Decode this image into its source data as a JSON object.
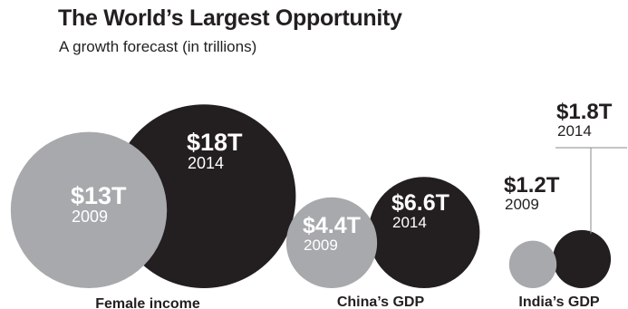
{
  "title": "The World’s Largest Opportunity",
  "subtitle": "A growth forecast (in trillions)",
  "chart_data": {
    "type": "bubble",
    "title": "The World’s Largest Opportunity",
    "subtitle": "A growth forecast (in trillions)",
    "unit": "trillions",
    "series": [
      {
        "name": "2009",
        "color": "#a7a9ac"
      },
      {
        "name": "2014",
        "color": "#231f20"
      }
    ],
    "groups": [
      {
        "category": "Female income",
        "points": [
          {
            "year": "2009",
            "value": 13,
            "label": "$13T"
          },
          {
            "year": "2014",
            "value": 18,
            "label": "$18T"
          }
        ]
      },
      {
        "category": "China’s GDP",
        "points": [
          {
            "year": "2009",
            "value": 4.4,
            "label": "$4.4T"
          },
          {
            "year": "2014",
            "value": 6.6,
            "label": "$6.6T"
          }
        ]
      },
      {
        "category": "India’s GDP",
        "points": [
          {
            "year": "2009",
            "value": 1.2,
            "label": "$1.2T"
          },
          {
            "year": "2014",
            "value": 1.8,
            "label": "$1.8T"
          }
        ]
      }
    ]
  }
}
